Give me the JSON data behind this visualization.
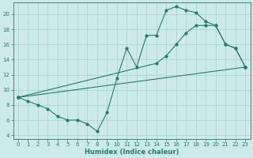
{
  "xlabel": "Humidex (Indice chaleur)",
  "bg_color": "#cceae8",
  "grid_color": "#aad4d0",
  "line_color": "#2a7a6a",
  "xlim": [
    -0.5,
    23.5
  ],
  "ylim": [
    3.5,
    21.5
  ],
  "xticks": [
    0,
    1,
    2,
    3,
    4,
    5,
    6,
    7,
    8,
    9,
    10,
    11,
    12,
    13,
    14,
    15,
    16,
    17,
    18,
    19,
    20,
    21,
    22,
    23
  ],
  "yticks": [
    4,
    6,
    8,
    10,
    12,
    14,
    16,
    18,
    20
  ],
  "curve1_x": [
    0,
    1,
    2,
    3,
    4,
    5,
    6,
    7,
    8,
    9,
    10,
    11,
    12,
    13,
    14,
    15,
    16,
    17,
    18,
    19,
    20,
    21,
    22,
    23
  ],
  "curve1_y": [
    9.0,
    8.5,
    8.0,
    7.5,
    6.5,
    6.0,
    6.0,
    5.5,
    4.5,
    7.0,
    11.5,
    15.5,
    13.0,
    17.2,
    17.2,
    20.5,
    21.0,
    20.5,
    20.2,
    19.0,
    18.5,
    16.0,
    15.5,
    13.0
  ],
  "curve2_x": [
    0,
    23
  ],
  "curve2_y": [
    9.0,
    13.0
  ],
  "curve3_x": [
    0,
    14,
    15,
    16,
    17,
    18,
    19,
    20,
    21,
    22,
    23
  ],
  "curve3_y": [
    9.0,
    13.5,
    14.5,
    16.0,
    17.5,
    18.5,
    18.5,
    18.5,
    16.0,
    15.5,
    13.0
  ]
}
